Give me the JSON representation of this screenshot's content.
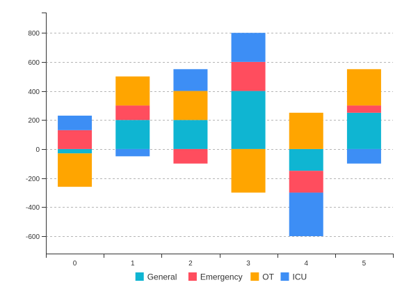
{
  "chart_data": {
    "type": "bar",
    "stacked": true,
    "categories": [
      "0",
      "1",
      "2",
      "3",
      "4",
      "5"
    ],
    "ylim": [
      -720,
      940
    ],
    "yticks": [
      800,
      600,
      400,
      200,
      0,
      -200,
      -400,
      -600
    ],
    "grid": {
      "horizontal": true,
      "style": "dashed"
    },
    "legend_position": "bottom",
    "series": [
      {
        "name": "General",
        "color": "#0fb5d2",
        "values": [
          -30,
          200,
          200,
          400,
          -150,
          250
        ]
      },
      {
        "name": "Emergency",
        "color": "#ff4d5e",
        "values": [
          130,
          100,
          -100,
          200,
          -150,
          50
        ]
      },
      {
        "name": "OT",
        "color": "#ffa500",
        "values": [
          -230,
          200,
          200,
          -300,
          250,
          250
        ]
      },
      {
        "name": "ICU",
        "color": "#3d8ef5",
        "values": [
          100,
          -50,
          150,
          200,
          -300,
          -100
        ]
      }
    ]
  }
}
